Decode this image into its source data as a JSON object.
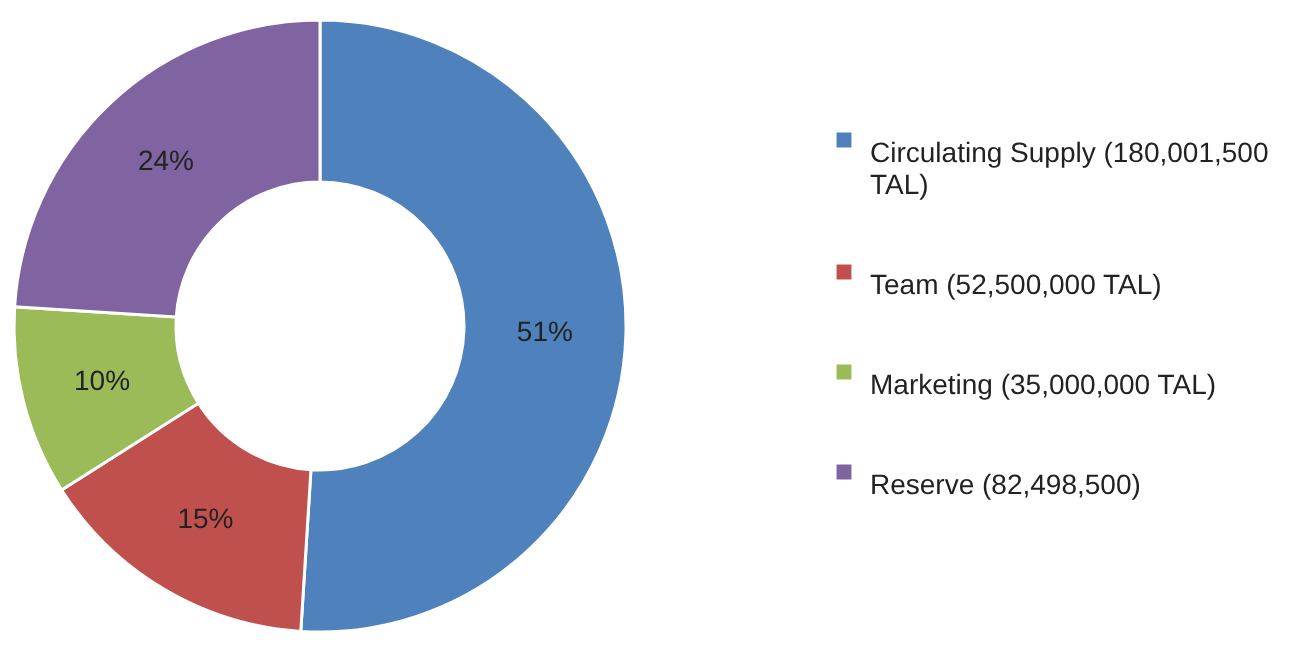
{
  "chart_data": {
    "type": "donut",
    "categories": [
      "Circulating Supply (180,001,500 TAL)",
      "Team (52,500,000 TAL)",
      "Marketing (35,000,000 TAL)",
      "Reserve (82,498,500)"
    ],
    "values": [
      51,
      15,
      10,
      24
    ],
    "value_labels": [
      "51%",
      "15%",
      "10%",
      "24%"
    ],
    "colors": [
      "#4f81bd",
      "#c0504d",
      "#9bbb59",
      "#8064a2"
    ],
    "legend": "right"
  }
}
